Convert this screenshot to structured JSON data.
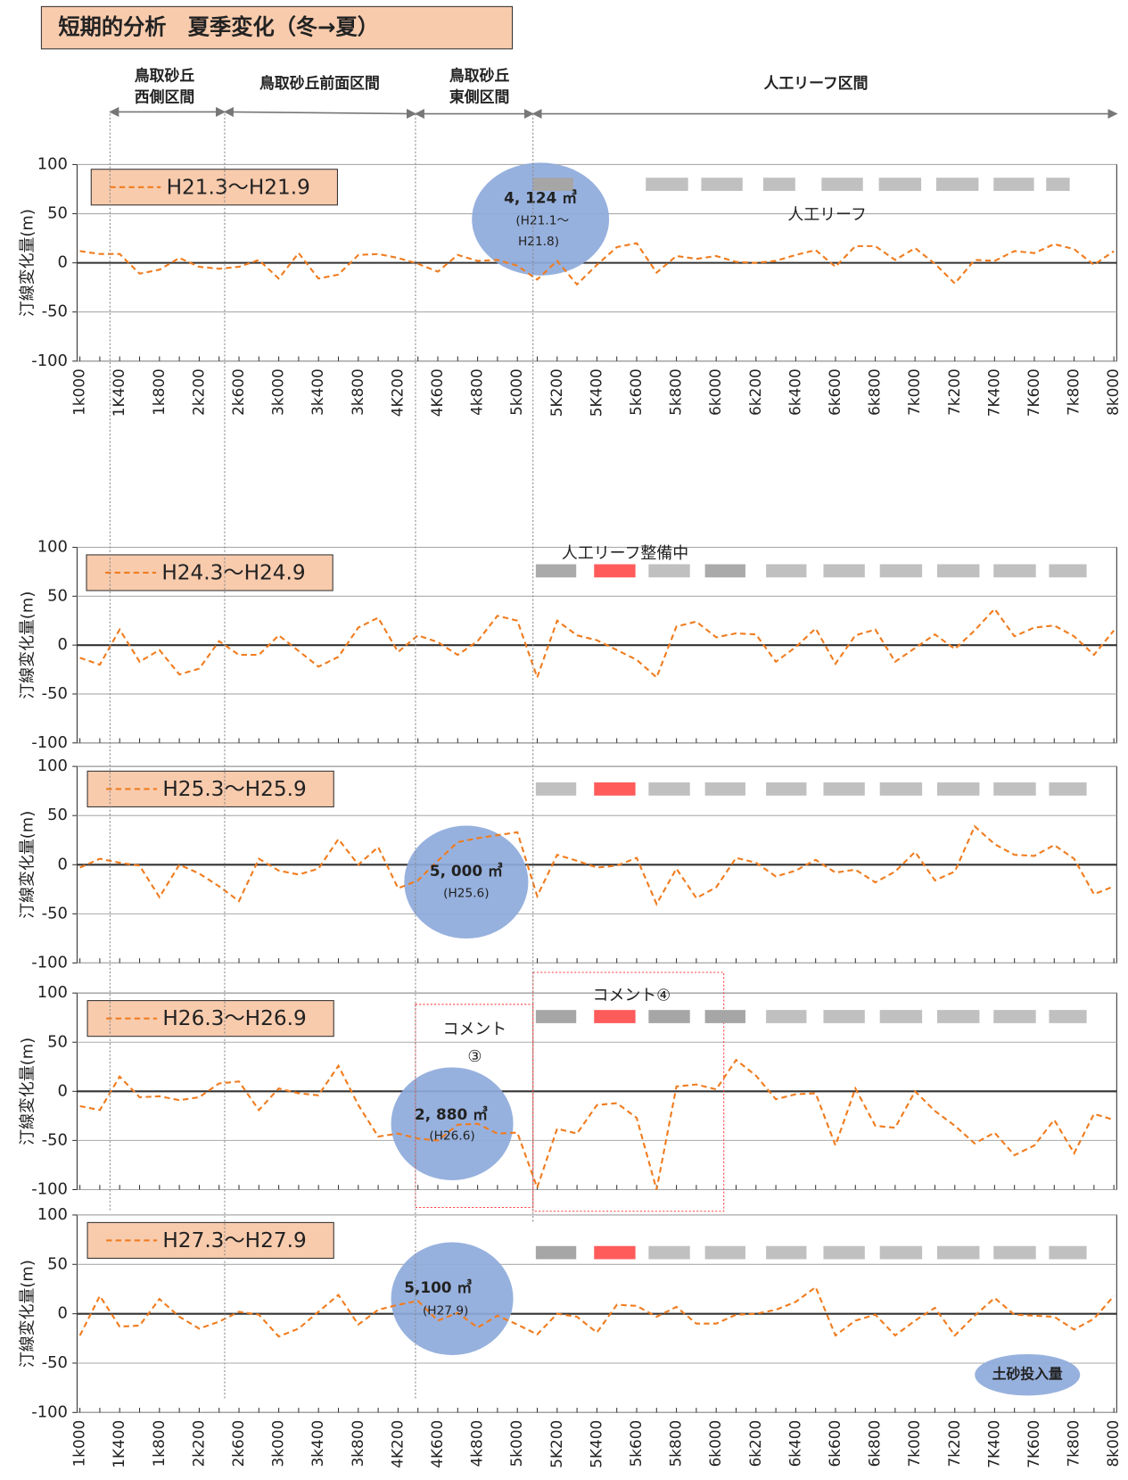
{
  "header": {
    "title": "短期的分析　夏季変化（冬→夏）"
  },
  "sections": [
    {
      "lines": [
        "鳥取砂丘",
        "西側区間"
      ]
    },
    {
      "lines": [
        "鳥取砂丘前面区間"
      ]
    },
    {
      "lines": [
        "鳥取砂丘",
        "東側区間"
      ]
    },
    {
      "lines": [
        "人工リーフ区間"
      ]
    }
  ],
  "chart_data": [
    {
      "type": "line",
      "ylabel": "汀線変化量(m)",
      "categories": [
        "1k000",
        null,
        "1K400",
        null,
        "1k800",
        null,
        "2k200",
        null,
        "2k600",
        null,
        "3k000",
        null,
        "3k400",
        null,
        "3k800",
        null,
        "4K200",
        null,
        "4K600",
        null,
        "4k800",
        null,
        "5k000",
        null,
        "5K200",
        null,
        "5K400",
        null,
        "5k600",
        null,
        "5k800",
        null,
        "6k000",
        null,
        "6k200",
        null,
        "6k400",
        null,
        "6k600",
        null,
        "6k800",
        null,
        "7k000",
        null,
        "7k200",
        null,
        "7K400",
        null,
        "7K600",
        null,
        "7k800",
        null,
        "8k000"
      ],
      "series": [
        {
          "name": "H21.3～H21.9",
          "color": "#f07c1f",
          "values": [
            12,
            9,
            9,
            -11,
            -7,
            5,
            -4,
            -6,
            -4,
            3,
            -16,
            10,
            -16,
            -12,
            8,
            9,
            5,
            -1,
            -9,
            8,
            2,
            3,
            -3,
            -17,
            2,
            -22,
            -2,
            16,
            20,
            -10,
            7,
            4,
            7,
            1,
            0,
            2,
            8,
            13,
            -4,
            17,
            17,
            3,
            15,
            -1,
            -21,
            3,
            2,
            12,
            10,
            19,
            14,
            -2,
            12
          ]
        }
      ],
      "ylim": [
        -100,
        100
      ],
      "yticks": [
        -100,
        -50,
        0,
        50,
        100
      ],
      "grid": true,
      "annotations": [
        "4, 124 ㎥",
        "(H21.1～",
        "H21.8)",
        "人工リーフ"
      ]
    },
    {
      "type": "line",
      "ylabel": "汀線変化量(m)",
      "series": [
        {
          "name": "H24.3～H24.9",
          "color": "#f07c1f",
          "values": [
            -13,
            -20,
            16,
            -17,
            -5,
            -30,
            -24,
            4,
            -10,
            -10,
            10,
            -6,
            -22,
            -12,
            18,
            28,
            -7,
            10,
            3,
            -10,
            4,
            30,
            25,
            -33,
            25,
            10,
            5,
            -5,
            -15,
            -33,
            19,
            24,
            8,
            12,
            11,
            -17,
            -2,
            17,
            -19,
            10,
            16,
            -17,
            -3,
            11,
            -4,
            15,
            37,
            9,
            18,
            20,
            9,
            -10,
            15
          ]
        }
      ],
      "ylim": [
        -100,
        100
      ],
      "yticks": [
        -100,
        -50,
        0,
        50,
        100
      ],
      "grid": true,
      "annotations": [
        "人工リーフ整備中"
      ]
    },
    {
      "type": "line",
      "ylabel": "汀線変化量(m)",
      "series": [
        {
          "name": "H25.3～H25.9",
          "color": "#f07c1f",
          "values": [
            -3,
            6,
            2,
            -1,
            -33,
            0,
            -9,
            -22,
            -37,
            6,
            -6,
            -10,
            -4,
            26,
            0,
            18,
            -24,
            -16,
            4,
            23,
            27,
            30,
            33,
            -32,
            10,
            4,
            -3,
            -1,
            7,
            -40,
            -4,
            -34,
            -23,
            7,
            2,
            -12,
            -6,
            5,
            -8,
            -5,
            -18,
            -7,
            13,
            -16,
            -7,
            39,
            21,
            10,
            9,
            20,
            6,
            -30,
            -22
          ]
        }
      ],
      "ylim": [
        -100,
        100
      ],
      "yticks": [
        -100,
        -50,
        0,
        50,
        100
      ],
      "grid": true,
      "annotations": [
        "5, 000 ㎥",
        "(H25.6)"
      ]
    },
    {
      "type": "line",
      "ylabel": "汀線変化量(m)",
      "series": [
        {
          "name": "H26.3～H26.9",
          "color": "#f07c1f",
          "values": [
            -15,
            -19,
            15,
            -6,
            -5,
            -9,
            -6,
            8,
            10,
            -19,
            3,
            -2,
            -4,
            26,
            -14,
            -46,
            -43,
            -48,
            -50,
            -34,
            -33,
            -43,
            -42,
            -98,
            -38,
            -43,
            -14,
            -12,
            -27,
            -100,
            5,
            7,
            2,
            32,
            16,
            -8,
            -3,
            -2,
            -55,
            3,
            -35,
            -37,
            0,
            -20,
            -35,
            -53,
            -42,
            -65,
            -55,
            -29,
            -63,
            -23,
            -29
          ]
        }
      ],
      "ylim": [
        -100,
        100
      ],
      "yticks": [
        -100,
        -50,
        0,
        50,
        100
      ],
      "grid": true,
      "annotations": [
        "コメント",
        "③",
        "コメント④",
        "2, 880 ㎥",
        "(H26.6)"
      ]
    },
    {
      "type": "line",
      "ylabel": "汀線変化量(m)",
      "categories": [
        "1k000",
        null,
        "1K400",
        null,
        "1k800",
        null,
        "2k200",
        null,
        "2k600",
        null,
        "3k000",
        null,
        "3k400",
        null,
        "3k800",
        null,
        "4K200",
        null,
        "4K600",
        null,
        "4k800",
        null,
        "5k000",
        null,
        "5K200",
        null,
        "5K400",
        null,
        "5k600",
        null,
        "5k800",
        null,
        "6k000",
        null,
        "6k200",
        null,
        "6k400",
        null,
        "6k600",
        null,
        "6k800",
        null,
        "7k000",
        null,
        "7k200",
        null,
        "7K400",
        null,
        "7K600",
        null,
        "7k800",
        null,
        "8k000"
      ],
      "series": [
        {
          "name": "H27.3～H27.9",
          "color": "#f07c1f",
          "values": [
            -22,
            18,
            -13,
            -12,
            15,
            -3,
            -15,
            -8,
            2,
            -1,
            -23,
            -15,
            2,
            19,
            -11,
            4,
            9,
            13,
            -7,
            1,
            -14,
            -2,
            -11,
            -21,
            0,
            -3,
            -19,
            9,
            8,
            -3,
            7,
            -10,
            -10,
            -1,
            0,
            4,
            12,
            27,
            -22,
            -7,
            -1,
            -22,
            -7,
            6,
            -22,
            -2,
            16,
            -1,
            -2,
            -3,
            -16,
            -5,
            18
          ]
        }
      ],
      "ylim": [
        -100,
        100
      ],
      "yticks": [
        -100,
        -50,
        0,
        50,
        100
      ],
      "grid": true,
      "annotations": [
        "5,100 ㎥",
        "(H27.9)",
        "土砂投入量"
      ]
    }
  ]
}
